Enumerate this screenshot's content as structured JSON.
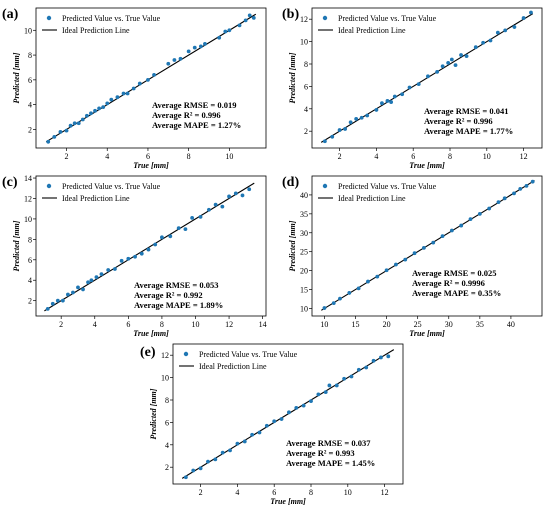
{
  "figure": {
    "colors": {
      "point": "#1f77b4",
      "line": "#000000",
      "axis": "#000000"
    }
  },
  "chart_data": [
    {
      "panel_label": "(a)",
      "type": "scatter",
      "xlabel": "True [mm]",
      "ylabel": "Predicted [mm]",
      "xlim": [
        0.5,
        11.8
      ],
      "ylim": [
        0.5,
        11.8
      ],
      "xticks": [
        2,
        4,
        6,
        8,
        10
      ],
      "yticks": [
        2,
        4,
        6,
        8,
        10
      ],
      "legend": {
        "position": "top-left",
        "entries": [
          "Predicted Value vs. True Value",
          "Ideal Prediction Line"
        ]
      },
      "metrics": [
        "Average RMSE = 0.019",
        "Average R² = 0.996",
        "Average MAPE = 1.27%"
      ],
      "grid": false,
      "series": [
        {
          "name": "Predicted Value vs. True Value",
          "style": "points",
          "x": [
            1.1,
            1.4,
            1.7,
            2.0,
            2.2,
            2.4,
            2.6,
            2.8,
            3.0,
            3.2,
            3.4,
            3.6,
            3.8,
            4.0,
            4.2,
            4.5,
            4.8,
            5.0,
            5.3,
            5.6,
            6.0,
            6.3,
            7.0,
            7.3,
            7.6,
            8.0,
            8.3,
            8.6,
            8.8,
            9.5,
            9.8,
            10.0,
            10.5,
            10.8,
            11.0,
            11.2
          ],
          "y": [
            1.0,
            1.4,
            1.8,
            1.9,
            2.3,
            2.5,
            2.5,
            2.8,
            3.1,
            3.3,
            3.5,
            3.7,
            3.8,
            4.1,
            4.4,
            4.6,
            4.9,
            4.9,
            5.3,
            5.7,
            6.0,
            6.4,
            7.3,
            7.6,
            7.7,
            8.3,
            8.6,
            8.7,
            8.9,
            9.4,
            9.9,
            10.0,
            10.4,
            10.8,
            11.2,
            11.0
          ]
        },
        {
          "name": "Ideal Prediction Line",
          "style": "line",
          "x": [
            1.0,
            11.3
          ],
          "y": [
            1.0,
            11.3
          ]
        }
      ]
    },
    {
      "panel_label": "(b)",
      "type": "scatter",
      "xlabel": "True [mm]",
      "ylabel": "Predicted [mm]",
      "xlim": [
        0.5,
        13.0
      ],
      "ylim": [
        0.5,
        13.0
      ],
      "xticks": [
        2,
        4,
        6,
        8,
        10,
        12
      ],
      "yticks": [
        2,
        4,
        6,
        8,
        10,
        12
      ],
      "legend": {
        "position": "top-left",
        "entries": [
          "Predicted Value vs. True Value",
          "Ideal Prediction Line"
        ]
      },
      "metrics": [
        "Average RMSE = 0.041",
        "Average R² = 0.996",
        "Average MAPE = 1.77%"
      ],
      "grid": false,
      "series": [
        {
          "name": "Predicted Value vs. True Value",
          "style": "points",
          "x": [
            1.2,
            1.6,
            2.0,
            2.3,
            2.6,
            2.9,
            3.2,
            3.5,
            4.0,
            4.3,
            4.6,
            4.8,
            5.0,
            5.4,
            5.8,
            6.3,
            6.8,
            7.3,
            7.6,
            7.9,
            8.1,
            8.3,
            8.6,
            8.9,
            9.4,
            9.8,
            10.2,
            10.6,
            11.0,
            11.5,
            12.0,
            12.4
          ],
          "y": [
            1.1,
            1.5,
            2.1,
            2.2,
            2.8,
            3.1,
            3.2,
            3.4,
            3.9,
            4.5,
            4.7,
            4.6,
            5.1,
            5.3,
            5.9,
            6.2,
            6.9,
            7.3,
            7.8,
            8.1,
            8.4,
            7.9,
            8.8,
            8.7,
            9.5,
            9.9,
            10.1,
            10.8,
            11.0,
            11.3,
            12.1,
            12.6
          ]
        },
        {
          "name": "Ideal Prediction Line",
          "style": "line",
          "x": [
            1.0,
            12.5
          ],
          "y": [
            1.0,
            12.5
          ]
        }
      ]
    },
    {
      "panel_label": "(c)",
      "type": "scatter",
      "xlabel": "True [mm]",
      "ylabel": "Predicted [mm]",
      "xlim": [
        0.5,
        14.2
      ],
      "ylim": [
        0.5,
        14.2
      ],
      "xticks": [
        2,
        4,
        6,
        8,
        10,
        12,
        14
      ],
      "yticks": [
        2,
        4,
        6,
        8,
        10,
        12,
        14
      ],
      "legend": {
        "position": "top-left",
        "entries": [
          "Predicted Value vs. True Value",
          "Ideal Prediction Line"
        ]
      },
      "metrics": [
        "Average RMSE = 0.053",
        "Average R² = 0.992",
        "Average MAPE = 1.89%"
      ],
      "grid": false,
      "series": [
        {
          "name": "Predicted Value vs. True Value",
          "style": "points",
          "x": [
            1.2,
            1.5,
            1.8,
            2.1,
            2.4,
            2.7,
            3.0,
            3.3,
            3.6,
            3.8,
            4.1,
            4.4,
            4.8,
            5.2,
            5.6,
            6.0,
            6.4,
            6.8,
            7.2,
            7.6,
            8.0,
            8.5,
            9.0,
            9.4,
            9.8,
            10.3,
            10.8,
            11.2,
            11.6,
            12.0,
            12.4,
            12.8,
            13.2
          ],
          "y": [
            1.2,
            1.7,
            2.0,
            2.0,
            2.6,
            2.8,
            3.3,
            3.1,
            3.8,
            4.0,
            4.3,
            4.6,
            5.0,
            5.1,
            5.9,
            6.1,
            6.3,
            6.6,
            7.0,
            7.5,
            8.2,
            8.3,
            9.1,
            9.0,
            10.1,
            10.2,
            10.9,
            11.4,
            11.2,
            12.2,
            12.5,
            12.3,
            12.9
          ]
        },
        {
          "name": "Ideal Prediction Line",
          "style": "line",
          "x": [
            1.0,
            13.5
          ],
          "y": [
            1.0,
            13.5
          ]
        }
      ]
    },
    {
      "panel_label": "(d)",
      "type": "scatter",
      "xlabel": "True [mm]",
      "ylabel": "Predicted [mm]",
      "xlim": [
        8.0,
        45.0
      ],
      "ylim": [
        8.0,
        45.0
      ],
      "xticks": [
        10,
        15,
        20,
        25,
        30,
        35,
        40
      ],
      "yticks": [
        10,
        15,
        20,
        25,
        30,
        35,
        40
      ],
      "legend": {
        "position": "top-left",
        "entries": [
          "Predicted Value vs. True Value",
          "Ideal Prediction Line"
        ]
      },
      "metrics": [
        "Average RMSE = 0.025",
        "Average R² = 0.9996",
        "Average MAPE = 0.35%"
      ],
      "grid": false,
      "series": [
        {
          "name": "Predicted Value vs. True Value",
          "style": "points",
          "x": [
            10.0,
            11.5,
            12.5,
            14.0,
            15.5,
            17.0,
            18.5,
            20.0,
            21.5,
            23.0,
            24.5,
            26.0,
            27.5,
            29.0,
            30.5,
            32.0,
            33.5,
            35.0,
            36.5,
            38.0,
            39.0,
            40.5,
            41.5,
            42.5,
            43.5
          ],
          "y": [
            10.1,
            11.4,
            12.6,
            14.1,
            15.3,
            17.1,
            18.4,
            20.1,
            21.6,
            22.9,
            24.6,
            26.0,
            27.4,
            29.1,
            30.6,
            31.9,
            33.6,
            35.0,
            36.4,
            38.1,
            39.1,
            40.4,
            41.6,
            42.4,
            43.5
          ]
        },
        {
          "name": "Ideal Prediction Line",
          "style": "line",
          "x": [
            9.5,
            43.8
          ],
          "y": [
            9.5,
            43.8
          ]
        }
      ]
    },
    {
      "panel_label": "(e)",
      "type": "scatter",
      "xlabel": "True [mm]",
      "ylabel": "Predicted [mm]",
      "xlim": [
        0.5,
        13.0
      ],
      "ylim": [
        0.5,
        13.0
      ],
      "xticks": [
        2,
        4,
        6,
        8,
        10,
        12
      ],
      "yticks": [
        2,
        4,
        6,
        8,
        10,
        12
      ],
      "legend": {
        "position": "top-left",
        "entries": [
          "Predicted Value vs. True Value",
          "Ideal Prediction Line"
        ]
      },
      "metrics": [
        "Average RMSE = 0.037",
        "Average R² = 0.993",
        "Average MAPE = 1.45%"
      ],
      "grid": false,
      "series": [
        {
          "name": "Predicted Value vs. True Value",
          "style": "points",
          "x": [
            1.2,
            1.6,
            2.0,
            2.4,
            2.8,
            3.2,
            3.6,
            4.0,
            4.4,
            4.8,
            5.2,
            5.6,
            6.0,
            6.4,
            6.8,
            7.2,
            7.6,
            8.0,
            8.4,
            8.8,
            9.0,
            9.4,
            9.8,
            10.2,
            10.6,
            11.0,
            11.4,
            11.8,
            12.2
          ],
          "y": [
            1.1,
            1.7,
            1.9,
            2.5,
            2.7,
            3.3,
            3.5,
            4.1,
            4.3,
            4.9,
            5.1,
            5.7,
            6.1,
            6.3,
            6.9,
            7.3,
            7.5,
            7.9,
            8.5,
            8.7,
            9.3,
            9.3,
            9.9,
            10.1,
            10.7,
            10.9,
            11.5,
            11.8,
            11.9
          ]
        },
        {
          "name": "Ideal Prediction Line",
          "style": "line",
          "x": [
            1.0,
            12.5
          ],
          "y": [
            1.0,
            12.5
          ]
        }
      ]
    }
  ]
}
